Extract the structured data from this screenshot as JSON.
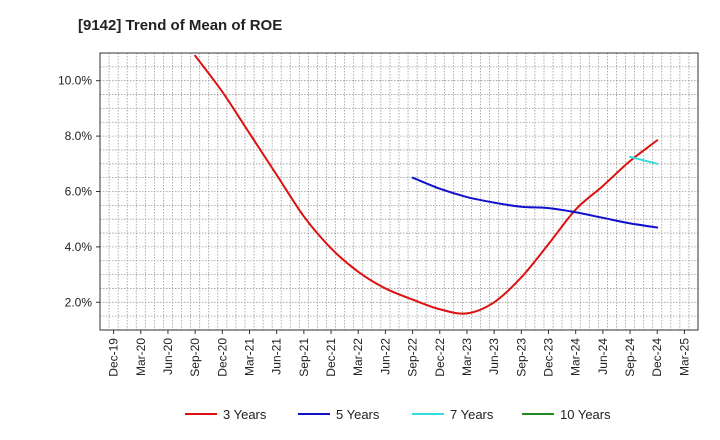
{
  "chart_data": {
    "type": "line",
    "title": "[9142]  Trend of Mean of ROE",
    "xlabel": "",
    "ylabel": "",
    "x_ticks": [
      "Dec-19",
      "Mar-20",
      "Jun-20",
      "Sep-20",
      "Dec-20",
      "Mar-21",
      "Jun-21",
      "Sep-21",
      "Dec-21",
      "Mar-22",
      "Jun-22",
      "Sep-22",
      "Dec-22",
      "Mar-23",
      "Jun-23",
      "Sep-23",
      "Dec-23",
      "Mar-24",
      "Jun-24",
      "Sep-24",
      "Dec-24",
      "Mar-25"
    ],
    "y_ticks": [
      "2.0%",
      "4.0%",
      "6.0%",
      "8.0%",
      "10.0%"
    ],
    "y_tick_values": [
      2,
      4,
      6,
      8,
      10
    ],
    "ylim": [
      1.0,
      11.0
    ],
    "grid": true,
    "legend_position": "bottom",
    "series": [
      {
        "name": "3 Years",
        "color": "#dd1111",
        "points": [
          [
            "Sep-20",
            10.9
          ],
          [
            "Dec-20",
            9.6
          ],
          [
            "Mar-21",
            8.1
          ],
          [
            "Jun-21",
            6.6
          ],
          [
            "Sep-21",
            5.1
          ],
          [
            "Dec-21",
            3.95
          ],
          [
            "Mar-22",
            3.1
          ],
          [
            "Jun-22",
            2.5
          ],
          [
            "Sep-22",
            2.1
          ],
          [
            "Dec-22",
            1.75
          ],
          [
            "Mar-23",
            1.6
          ],
          [
            "Jun-23",
            2.0
          ],
          [
            "Sep-23",
            2.9
          ],
          [
            "Dec-23",
            4.1
          ],
          [
            "Mar-24",
            5.35
          ],
          [
            "Jun-24",
            6.2
          ],
          [
            "Sep-24",
            7.1
          ],
          [
            "Dec-24",
            7.85
          ]
        ]
      },
      {
        "name": "5 Years",
        "color": "#1111cc",
        "points": [
          [
            "Sep-22",
            6.5
          ],
          [
            "Dec-22",
            6.1
          ],
          [
            "Mar-23",
            5.8
          ],
          [
            "Jun-23",
            5.6
          ],
          [
            "Sep-23",
            5.45
          ],
          [
            "Dec-23",
            5.4
          ],
          [
            "Mar-24",
            5.25
          ],
          [
            "Jun-24",
            5.05
          ],
          [
            "Sep-24",
            4.85
          ],
          [
            "Dec-24",
            4.7
          ]
        ]
      },
      {
        "name": "7 Years",
        "color": "#33dddd",
        "points": [
          [
            "Sep-24",
            7.25
          ],
          [
            "Dec-24",
            7.0
          ]
        ]
      },
      {
        "name": "10 Years",
        "color": "#228822",
        "points": []
      }
    ]
  }
}
